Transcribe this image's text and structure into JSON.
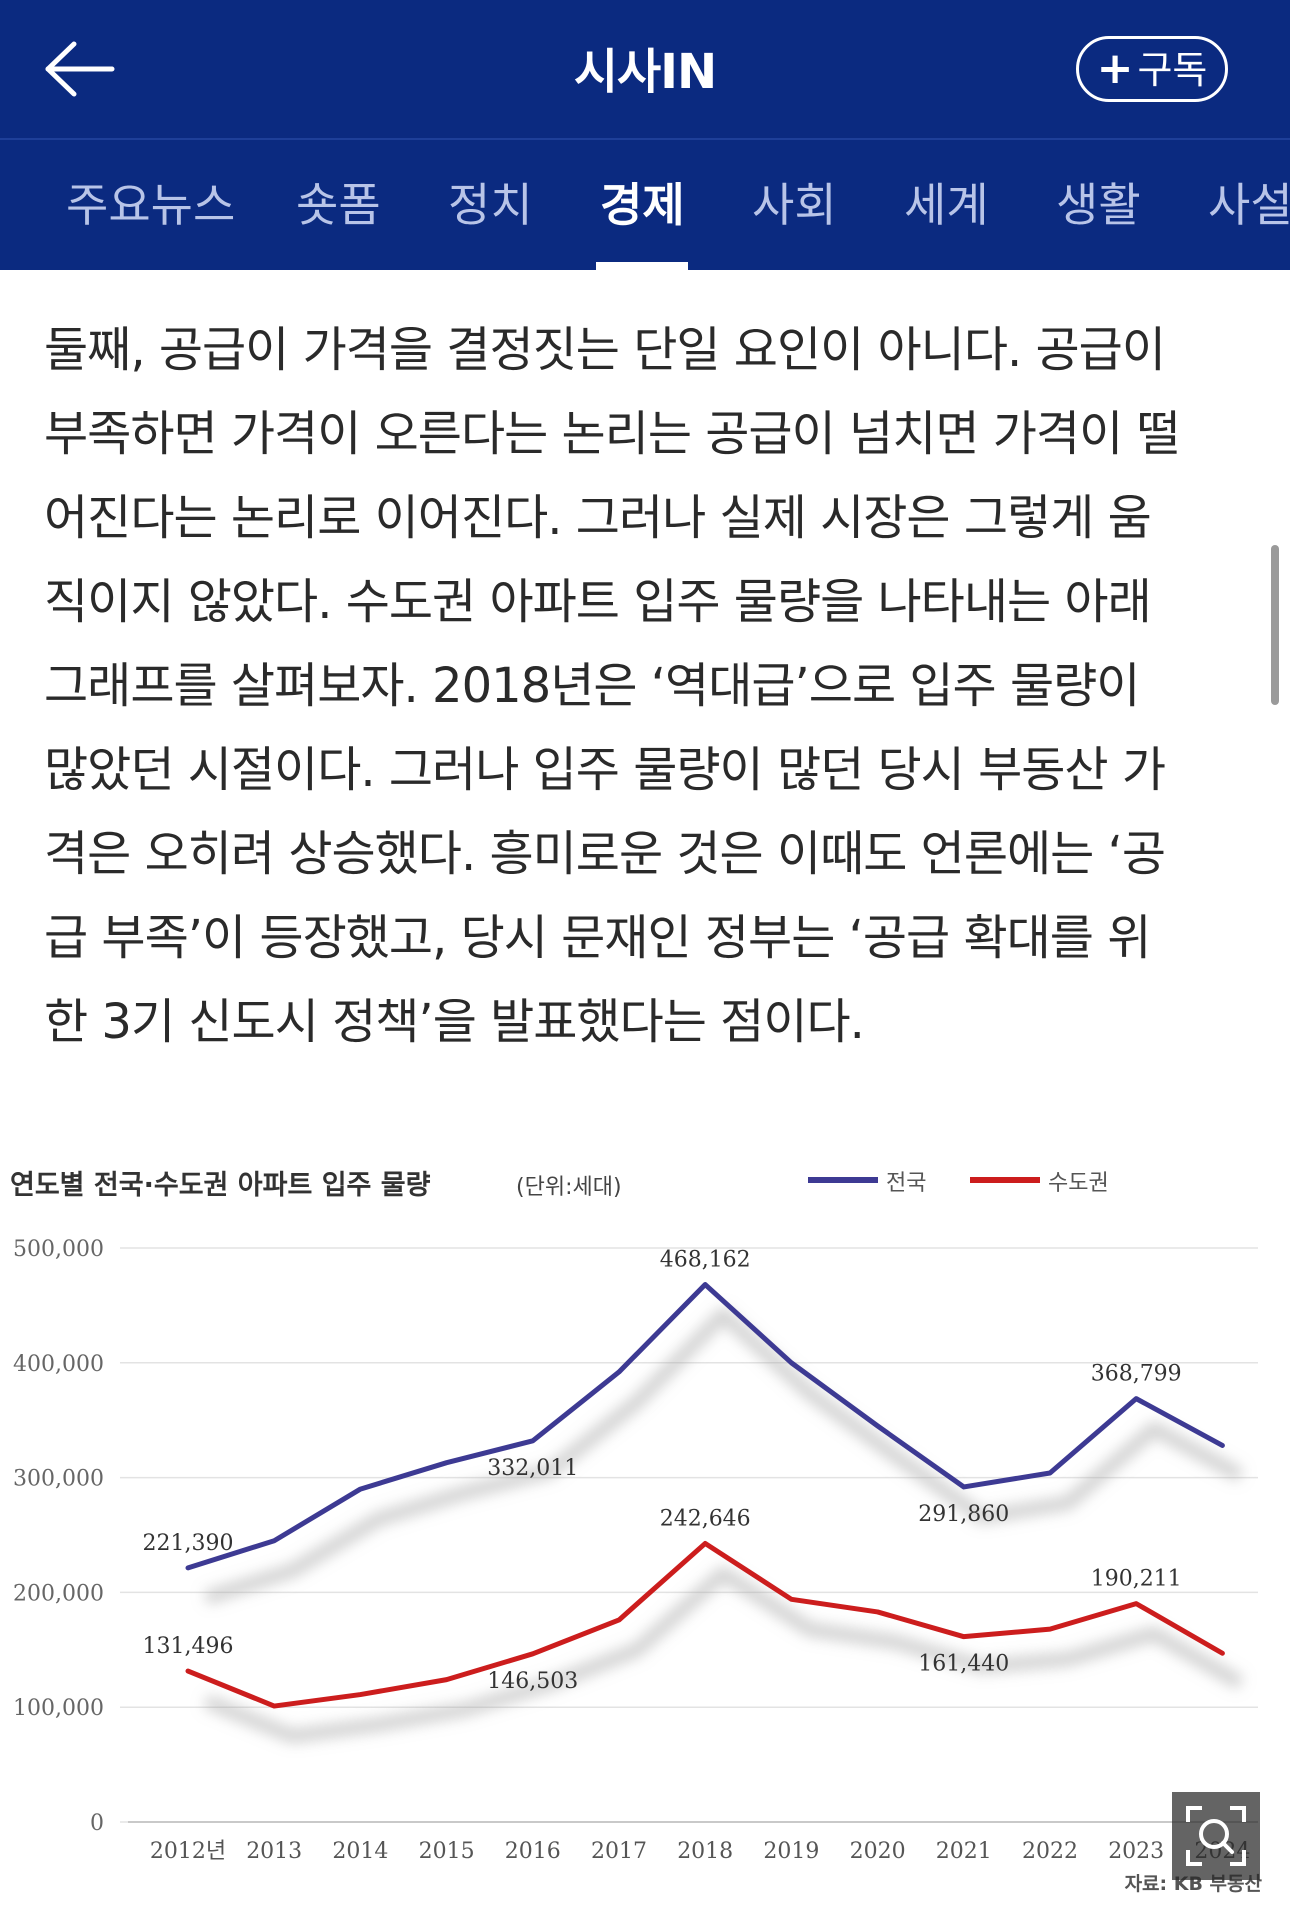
{
  "header": {
    "brand": "시사IN",
    "subscribe_label": "구독",
    "back_icon": "arrow-left-icon",
    "plus_icon": "plus-icon"
  },
  "tabs": [
    {
      "label": "주요뉴스",
      "active": false
    },
    {
      "label": "숏폼",
      "active": false
    },
    {
      "label": "정치",
      "active": false
    },
    {
      "label": "경제",
      "active": true
    },
    {
      "label": "사회",
      "active": false
    },
    {
      "label": "세계",
      "active": false
    },
    {
      "label": "생활",
      "active": false
    },
    {
      "label": "사설",
      "active": false
    }
  ],
  "article": {
    "lines": [
      "둘째, 공급이 가격을 결정짓는 단일 요인이 아니다. 공급이",
      "부족하면 가격이 오른다는 논리는 공급이 넘치면 가격이 떨",
      "어진다는 논리로 이어진다. 그러나 실제 시장은 그렇게 움",
      "직이지 않았다. 수도권 아파트 입주 물량을 나타내는 아래",
      "그래프를 살펴보자. 2018년은 ‘역대급’으로 입주 물량이",
      "많았던 시절이다. 그러나 입주 물량이 많던 당시 부동산 가",
      "격은 오히려 상승했다. 흥미로운 것은 이때도 언론에는 ‘공",
      "급 부족’이 등장했고, 당시 문재인 정부는 ‘공급 확대를 위",
      "한 3기 신도시 정책’을 발표했다는 점이다."
    ]
  },
  "chart_data": {
    "type": "line",
    "title": "연도별 전국·수도권 아파트 입주 물량",
    "title_unit": "(단위:세대)",
    "source": "자료: KB 부동산",
    "x": [
      "2012년",
      "2013",
      "2014",
      "2015",
      "2016",
      "2017",
      "2018",
      "2019",
      "2020",
      "2021",
      "2022",
      "2023",
      "2024"
    ],
    "ylim": [
      0,
      500000
    ],
    "yticks": [
      "0",
      "100,000",
      "200,000",
      "300,000",
      "400,000",
      "500,000"
    ],
    "grid": true,
    "legend_position": "top-right",
    "series": [
      {
        "name": "전국",
        "color": "#3d3a93",
        "values": [
          221390,
          245000,
          290000,
          313000,
          332011,
          392000,
          468162,
          400000,
          345000,
          291860,
          304000,
          368799,
          328000
        ],
        "labels": [
          {
            "index": 0,
            "text": "221,390"
          },
          {
            "index": 4,
            "text": "332,011"
          },
          {
            "index": 6,
            "text": "468,162"
          },
          {
            "index": 9,
            "text": "291,860"
          },
          {
            "index": 11,
            "text": "368,799"
          }
        ]
      },
      {
        "name": "수도권",
        "color": "#cc1d1d",
        "values": [
          131496,
          101000,
          111000,
          124000,
          146503,
          176000,
          242646,
          194000,
          183000,
          161440,
          168000,
          190211,
          147000
        ],
        "labels": [
          {
            "index": 0,
            "text": "131,496"
          },
          {
            "index": 4,
            "text": "146,503"
          },
          {
            "index": 6,
            "text": "242,646"
          },
          {
            "index": 9,
            "text": "161,440"
          },
          {
            "index": 11,
            "text": "190,211"
          }
        ]
      }
    ]
  },
  "zoom": {
    "icon": "zoom-search-icon"
  }
}
